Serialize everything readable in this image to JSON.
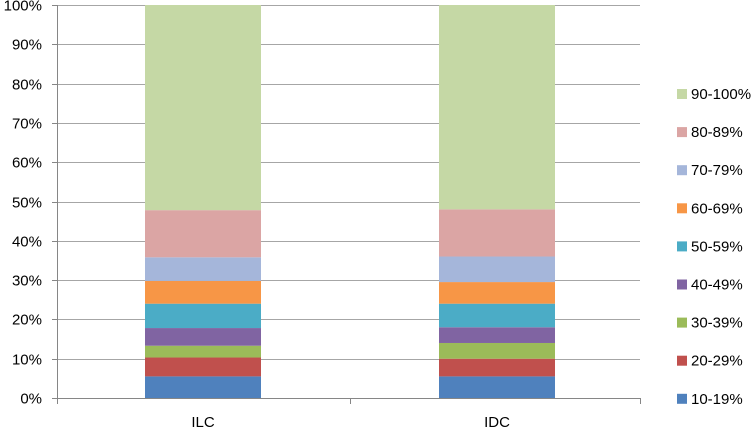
{
  "chart_data": {
    "type": "bar",
    "stacked": true,
    "categories": [
      "ILC",
      "IDC"
    ],
    "series": [
      {
        "name": "10-19%",
        "color": "#4F81BD",
        "values": [
          5.5,
          5.5
        ]
      },
      {
        "name": "20-29%",
        "color": "#C0504D",
        "values": [
          4.8,
          4.5
        ]
      },
      {
        "name": "30-39%",
        "color": "#9BBB59",
        "values": [
          3.0,
          4.0
        ]
      },
      {
        "name": "40-49%",
        "color": "#8064A2",
        "values": [
          4.5,
          4.0
        ]
      },
      {
        "name": "50-59%",
        "color": "#4BACC6",
        "values": [
          6.2,
          6.0
        ]
      },
      {
        "name": "60-69%",
        "color": "#F79646",
        "values": [
          5.8,
          5.5
        ]
      },
      {
        "name": "70-79%",
        "color": "#A5B6DA",
        "values": [
          6.0,
          6.5
        ]
      },
      {
        "name": "80-89%",
        "color": "#DBA5A4",
        "values": [
          12.0,
          12.0
        ]
      },
      {
        "name": "90-100%",
        "color": "#C5D8A5",
        "values": [
          52.2,
          52.0
        ]
      }
    ],
    "y_ticks": [
      "0%",
      "10%",
      "20%",
      "30%",
      "40%",
      "50%",
      "60%",
      "70%",
      "80%",
      "90%",
      "100%"
    ],
    "ylim": [
      0,
      100
    ],
    "grid": true,
    "legend_position": "right",
    "title": "",
    "xlabel": "",
    "ylabel": ""
  },
  "colors": {
    "grid": "#A6A6A6",
    "axis": "#868686"
  }
}
